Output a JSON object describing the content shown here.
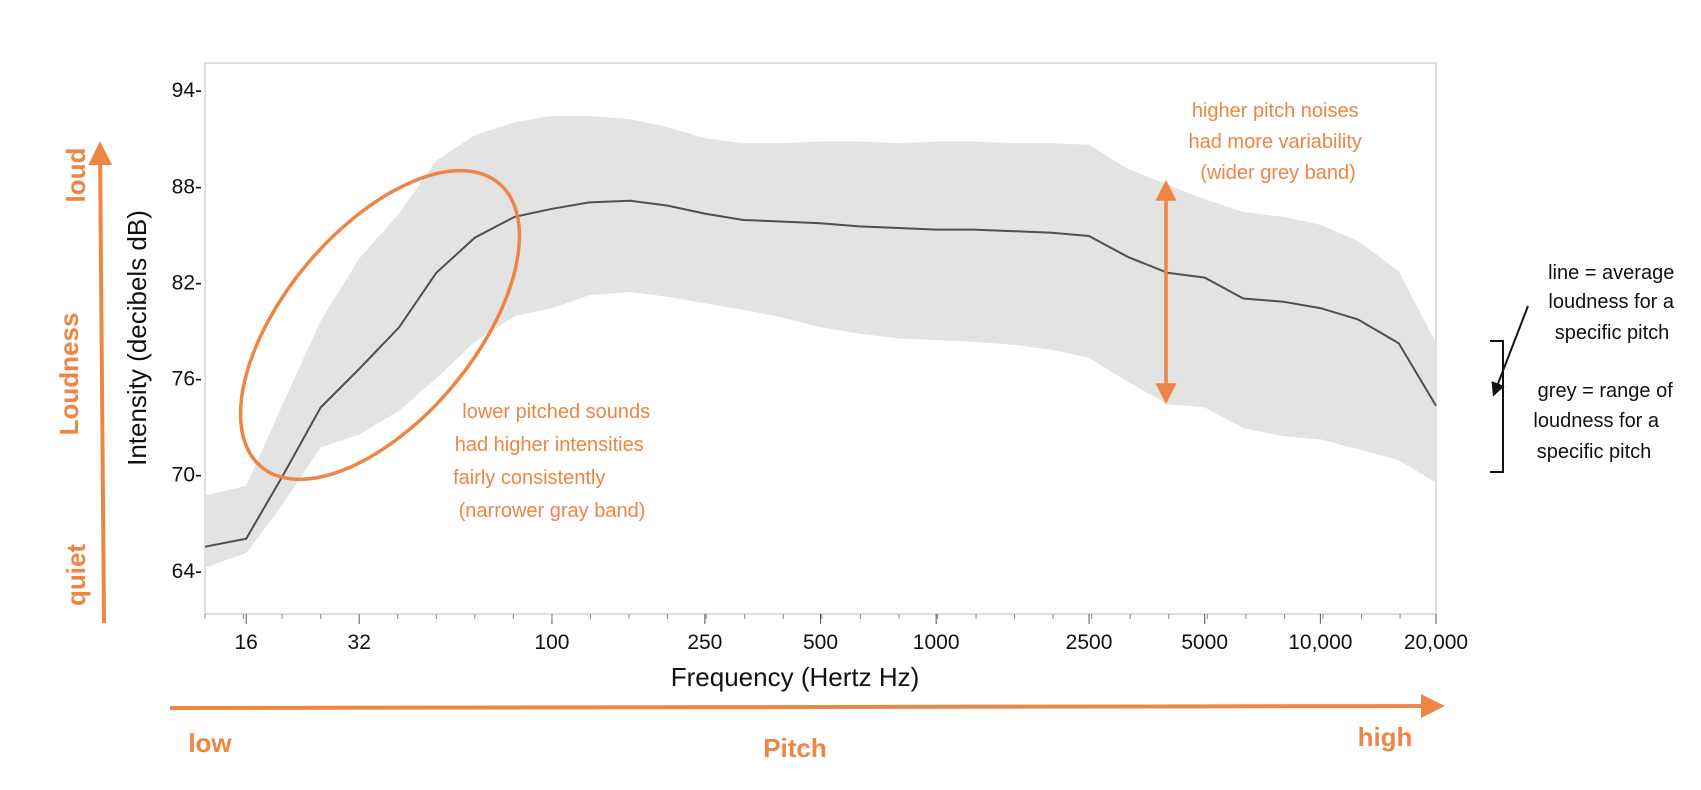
{
  "chart_data": {
    "type": "area",
    "title": "",
    "xlabel": "Frequency (Hertz Hz)",
    "ylabel": "Intensity  (decibels dB)",
    "x_scale": "categorical-log",
    "x_ticks": [
      "16",
      "32",
      "100",
      "250",
      "500",
      "1000",
      "2500",
      "5000",
      "10,000",
      "20,000"
    ],
    "y_ticks": [
      94,
      88,
      82,
      76,
      70,
      64
    ],
    "ylim": [
      61.3,
      95.7
    ],
    "grid": false,
    "series": [
      {
        "role": "average",
        "x": [
          12.5,
          16,
          20,
          25,
          31.5,
          40,
          50,
          63,
          80,
          100,
          125,
          160,
          200,
          250,
          315,
          400,
          500,
          630,
          800,
          1000,
          1250,
          1600,
          2000,
          2500,
          3150,
          4000,
          5000,
          6300,
          8000,
          10000,
          12500,
          16000,
          20000
        ],
        "values": [
          65.5,
          66.0,
          70.0,
          74.2,
          76.6,
          79.2,
          82.6,
          84.8,
          86.1,
          86.6,
          87.0,
          87.1,
          86.8,
          86.3,
          85.9,
          85.8,
          85.7,
          85.5,
          85.4,
          85.3,
          85.3,
          85.2,
          85.1,
          84.9,
          83.6,
          82.6,
          82.3,
          81.0,
          80.8,
          80.4,
          79.7,
          78.2,
          74.3
        ]
      },
      {
        "role": "range-upper",
        "x": [
          12.5,
          16,
          20,
          25,
          31.5,
          40,
          50,
          63,
          80,
          100,
          125,
          160,
          200,
          250,
          315,
          400,
          500,
          630,
          800,
          1000,
          1250,
          1600,
          2000,
          2500,
          3150,
          4000,
          5000,
          6300,
          8000,
          10000,
          12500,
          16000,
          20000
        ],
        "values": [
          68.7,
          69.3,
          74.5,
          79.6,
          83.5,
          86.3,
          89.6,
          91.2,
          92.0,
          92.4,
          92.4,
          92.2,
          91.7,
          91.0,
          90.7,
          90.7,
          90.8,
          90.8,
          90.7,
          90.8,
          90.8,
          90.7,
          90.7,
          90.6,
          89.1,
          88.1,
          87.2,
          86.4,
          86.1,
          85.6,
          84.6,
          82.7,
          78.2
        ]
      },
      {
        "role": "range-lower",
        "x": [
          12.5,
          16,
          20,
          25,
          31.5,
          40,
          50,
          63,
          80,
          100,
          125,
          160,
          200,
          250,
          315,
          400,
          500,
          630,
          800,
          1000,
          1250,
          1600,
          2000,
          2500,
          3150,
          4000,
          5000,
          6300,
          8000,
          10000,
          12500,
          16000,
          20000
        ],
        "values": [
          64.2,
          65.1,
          68.2,
          71.7,
          72.5,
          74.0,
          76.0,
          78.3,
          79.9,
          80.4,
          81.2,
          81.4,
          81.1,
          80.7,
          80.3,
          79.8,
          79.2,
          78.8,
          78.5,
          78.4,
          78.3,
          78.1,
          77.8,
          77.3,
          75.8,
          74.4,
          74.2,
          72.9,
          72.4,
          72.2,
          71.6,
          70.9,
          69.5
        ]
      }
    ]
  },
  "annotations": {
    "left_axis": {
      "top": "loud",
      "middle": "Loudness",
      "bottom": "quiet"
    },
    "bottom_axis": {
      "left": "low",
      "middle": "Pitch",
      "right": "high"
    },
    "low_note": [
      "lower pitched sounds",
      "had higher intensities",
      "fairly consistently",
      "(narrower gray band)"
    ],
    "high_note": [
      "higher pitch noises",
      "had more variability",
      "(wider grey band)"
    ],
    "legend_line": [
      "line = average",
      "loudness for a",
      "specific pitch"
    ],
    "legend_grey": [
      "grey = range of",
      "loudness for a",
      "specific pitch"
    ]
  },
  "colors": {
    "accent": "#ee8544",
    "band": "#e3e3e3",
    "line": "#4f4f4f"
  }
}
